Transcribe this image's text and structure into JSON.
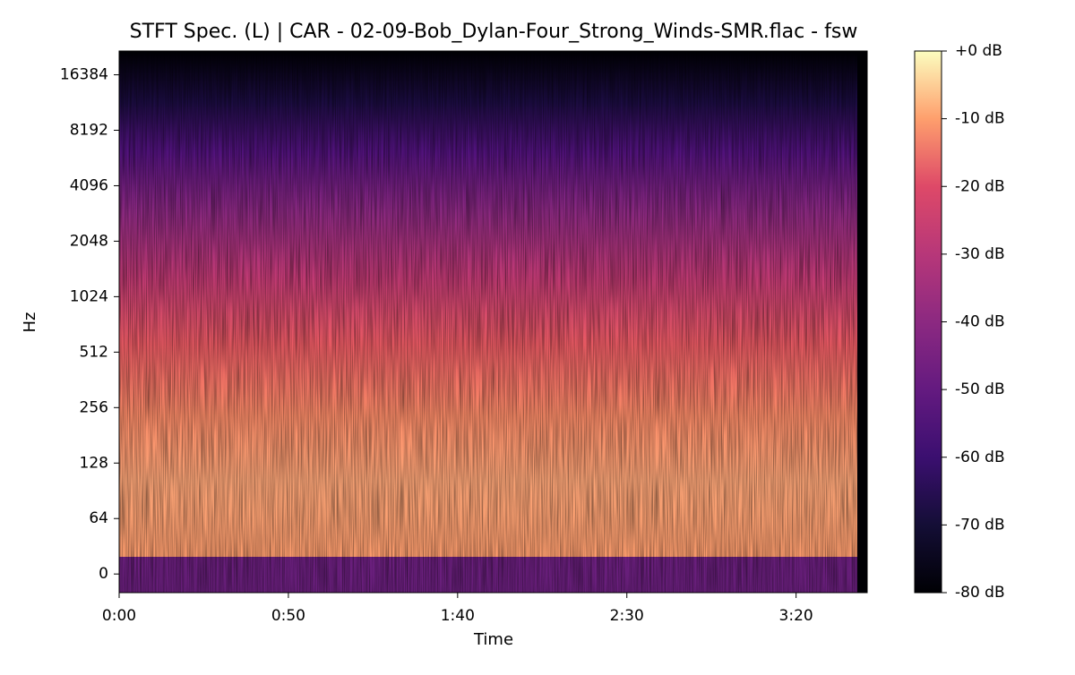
{
  "chart_data": {
    "type": "spectrogram",
    "title": "STFT Spec. (L) | CAR - 02-09-Bob_Dylan-Four_Strong_Winds-SMR.flac - fsw",
    "xlabel": "Time",
    "ylabel": "Hz",
    "xlim": [
      0,
      221
    ],
    "xticks": [
      {
        "value": 0,
        "label": "0:00"
      },
      {
        "value": 50,
        "label": "0:50"
      },
      {
        "value": 100,
        "label": "1:40"
      },
      {
        "value": 150,
        "label": "2:30"
      },
      {
        "value": 200,
        "label": "3:20"
      }
    ],
    "yscale": "symlog",
    "linthresh": 64,
    "ylim": [
      -21.5,
      22050
    ],
    "yticks": [
      0,
      64,
      128,
      256,
      512,
      1024,
      2048,
      4096,
      8192,
      16384
    ],
    "colorbar": {
      "lim": [
        -80,
        0
      ],
      "ticks": [
        {
          "value": 0,
          "label": "+0 dB"
        },
        {
          "value": -10,
          "label": "-10 dB"
        },
        {
          "value": -20,
          "label": "-20 dB"
        },
        {
          "value": -30,
          "label": "-30 dB"
        },
        {
          "value": -40,
          "label": "-40 dB"
        },
        {
          "value": -50,
          "label": "-50 dB"
        },
        {
          "value": -60,
          "label": "-60 dB"
        },
        {
          "value": -70,
          "label": "-70 dB"
        },
        {
          "value": -80,
          "label": "-80 dB"
        }
      ]
    }
  }
}
